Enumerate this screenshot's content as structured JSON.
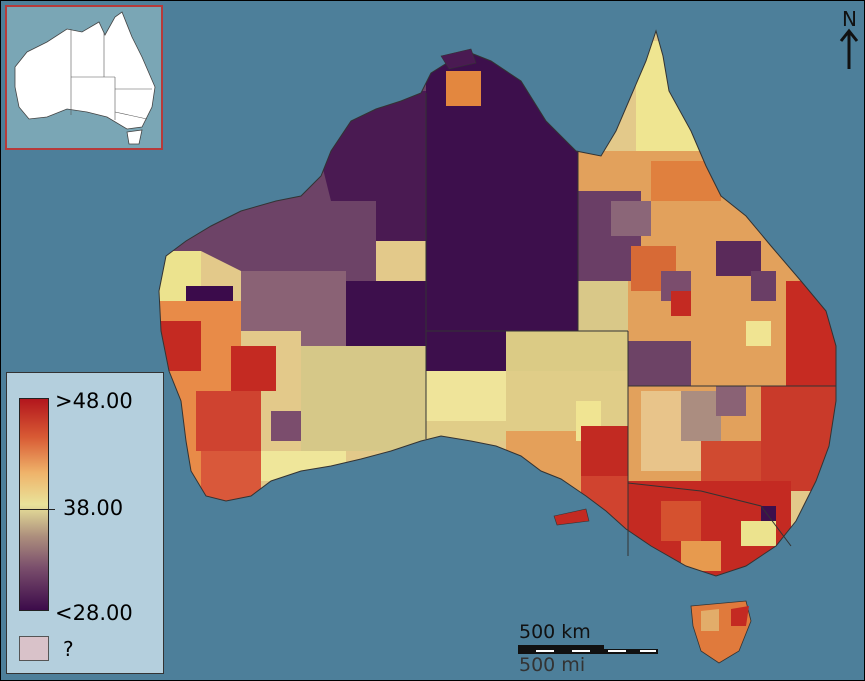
{
  "legend": {
    "max_label": ">48.00",
    "mid_label": "38.00",
    "min_label": "<28.00",
    "nodata_label": "?",
    "colors": {
      "high": "#b2161d",
      "mid": "#e9e39a",
      "low": "#3c0b4a",
      "no_data": "#d9c2c9"
    }
  },
  "north_arrow": {
    "label": "N"
  },
  "scale_bar": {
    "km_label": "500 km",
    "mi_label": "500 mi"
  },
  "colors": {
    "ocean": "#4d7f9a",
    "inset_ocean": "#7aa6b5",
    "inset_frame": "#b73a3a"
  }
}
